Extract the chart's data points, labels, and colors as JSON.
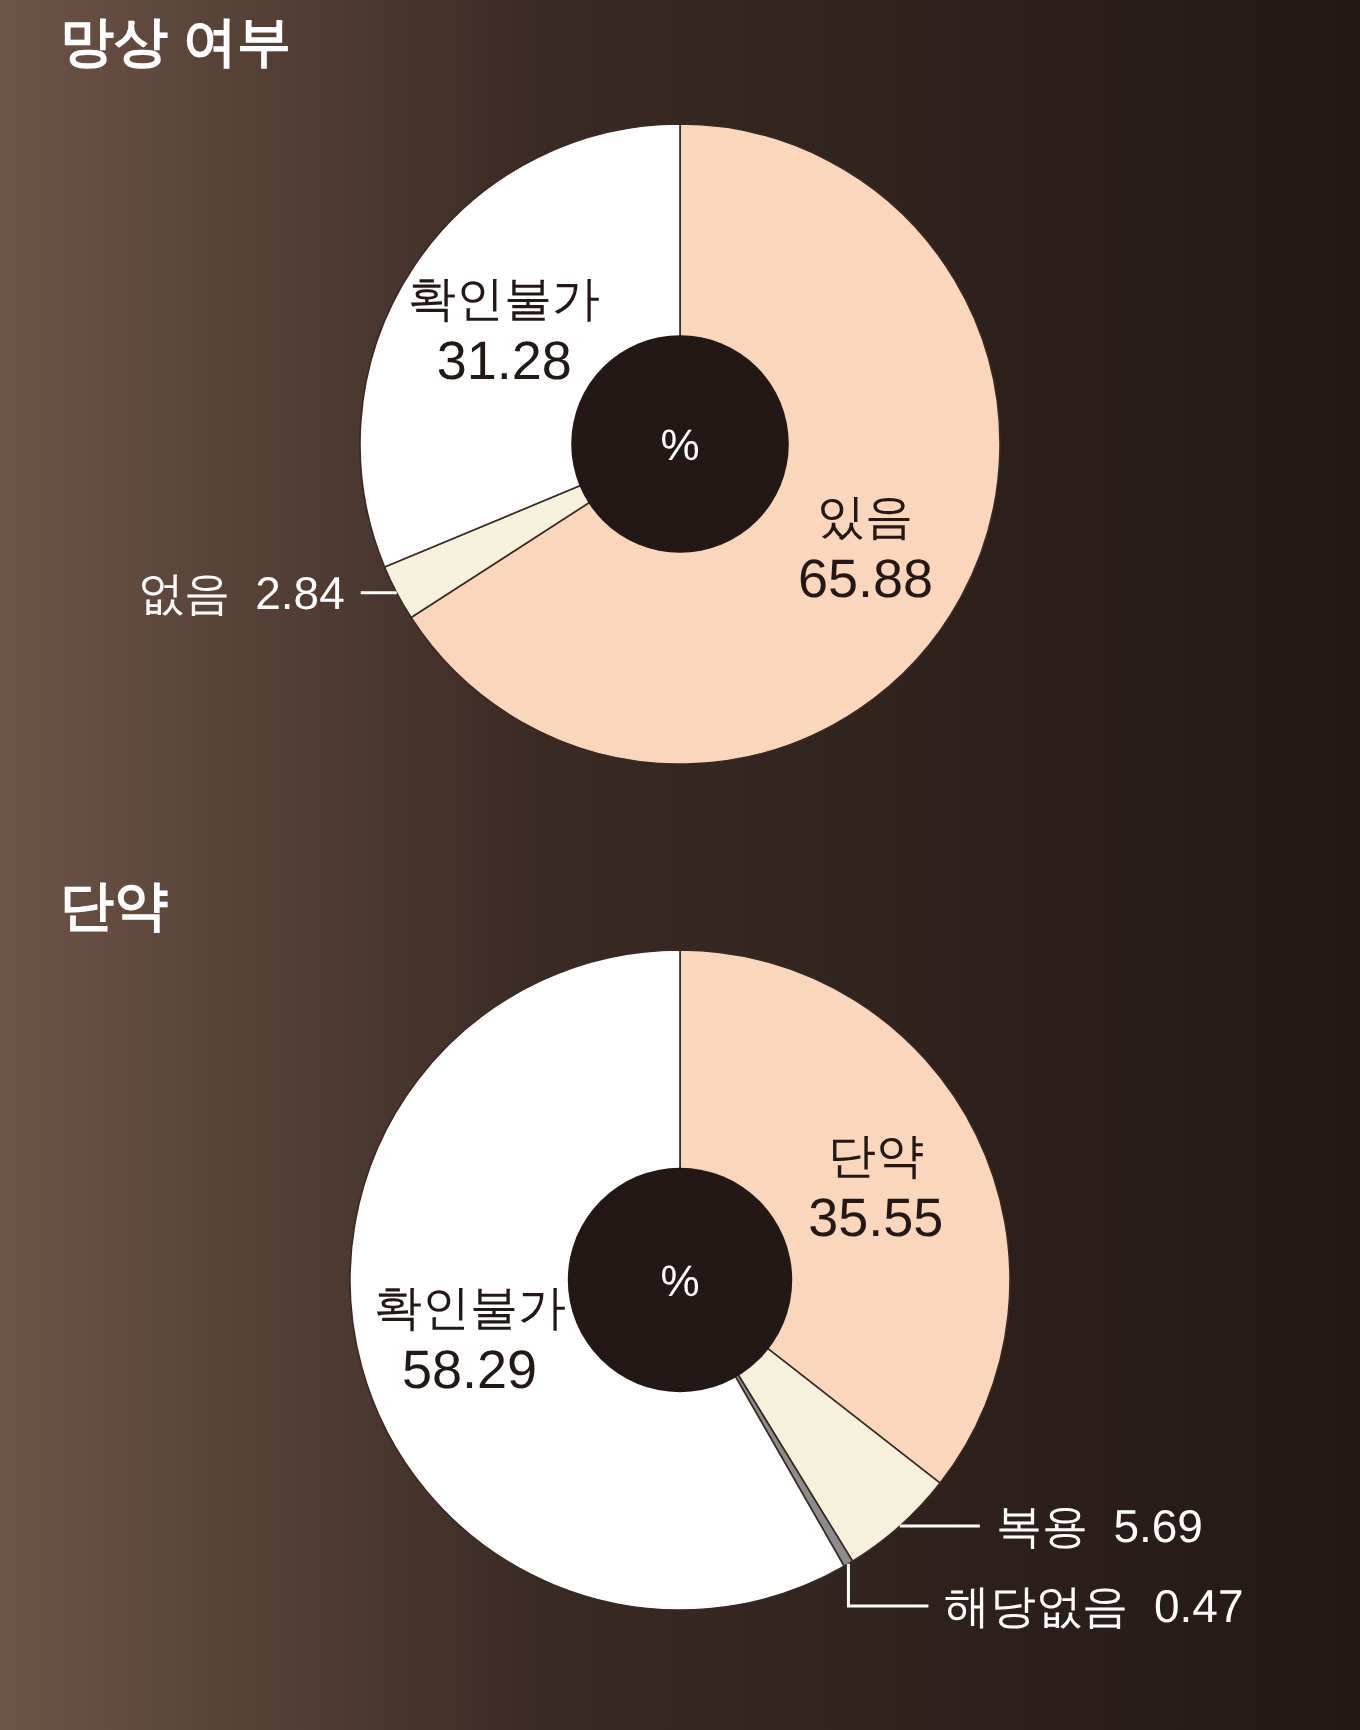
{
  "chart_data": [
    {
      "type": "donut",
      "title": "망상 여부",
      "categories": [
        "있음",
        "없음",
        "확인불가"
      ],
      "values": [
        65.88,
        2.84,
        31.28
      ],
      "colors": [
        "#fad6bd",
        "#f6f1dc",
        "#ffffff"
      ],
      "data_labels": true,
      "annotations": [
        "%"
      ]
    },
    {
      "type": "donut",
      "title": "단약",
      "categories": [
        "단약",
        "복용",
        "해당없음",
        "확인불가"
      ],
      "values": [
        35.55,
        5.69,
        0.47,
        58.29
      ],
      "colors": [
        "#fad6bd",
        "#f6f1dc",
        "#8c8c8c",
        "#ffffff"
      ],
      "data_labels": true,
      "annotations": [
        "%"
      ]
    }
  ]
}
